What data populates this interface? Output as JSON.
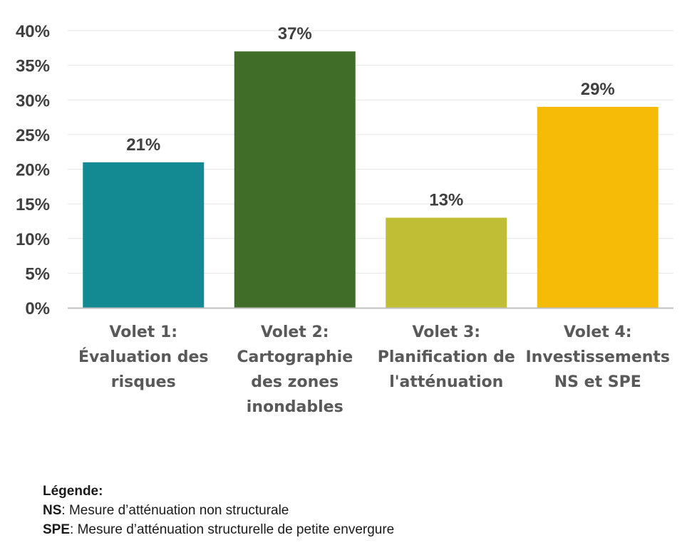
{
  "chart_data": {
    "type": "bar",
    "title": "",
    "xlabel": "",
    "ylabel": "",
    "ylim": [
      0,
      40
    ],
    "y_ticks": [
      "0%",
      "5%",
      "10%",
      "15%",
      "20%",
      "25%",
      "30%",
      "35%",
      "40%"
    ],
    "grid": true,
    "categories": [
      [
        "Volet 1:",
        "Évaluation des",
        "risques"
      ],
      [
        "Volet 2:",
        "Cartographie",
        "des zones",
        "inondables"
      ],
      [
        "Volet 3:",
        "Planification de",
        "l'atténuation"
      ],
      [
        "Volet 4:",
        "Investissements",
        "NS et SPE"
      ]
    ],
    "values": [
      21,
      37,
      13,
      29
    ],
    "data_labels": [
      "21%",
      "37%",
      "13%",
      "29%"
    ],
    "colors": [
      "#138a92",
      "#406d27",
      "#c0be35",
      "#f6bb06"
    ]
  },
  "legend": {
    "title": "Légende:",
    "items": [
      {
        "abbr": "NS",
        "text": ": Mesure d’atténuation non structurale"
      },
      {
        "abbr": "SPE",
        "text": ": Mesure d’atténuation structurelle de petite envergure"
      }
    ]
  }
}
